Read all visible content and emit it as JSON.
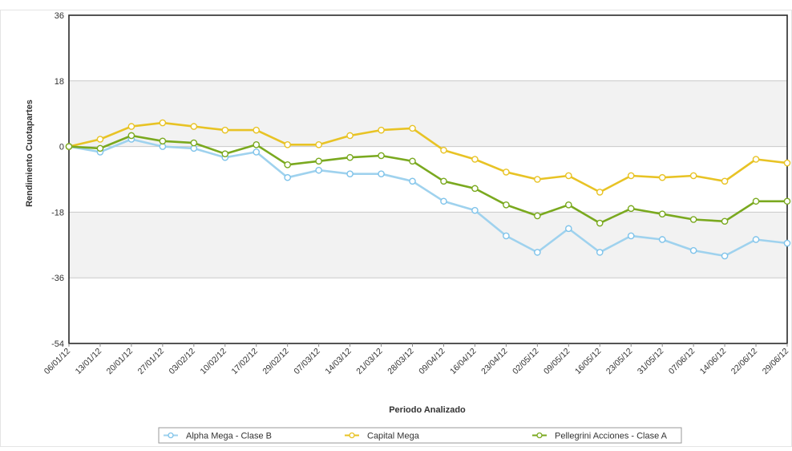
{
  "chart_data": {
    "type": "line",
    "title": "",
    "xlabel": "Periodo Analizado",
    "ylabel": "Rendimiento Cuotapartes",
    "ylim": [
      -54,
      36
    ],
    "yticks": [
      36,
      18,
      0,
      -18,
      -36,
      -54
    ],
    "grid": true,
    "legend_position": "bottom",
    "x": [
      "06/01/12",
      "13/01/12",
      "20/01/12",
      "27/01/12",
      "03/02/12",
      "10/02/12",
      "17/02/12",
      "29/02/12",
      "07/03/12",
      "14/03/12",
      "21/03/12",
      "28/03/12",
      "09/04/12",
      "16/04/12",
      "23/04/12",
      "02/05/12",
      "09/05/12",
      "16/05/12",
      "23/05/12",
      "31/05/12",
      "07/06/12",
      "14/06/12",
      "22/06/12",
      "29/06/12"
    ],
    "series": [
      {
        "name": "Alpha Mega - Clase B",
        "color": "#9fd2ee",
        "values": [
          0,
          -1.5,
          2,
          0,
          -0.5,
          -3,
          -1.5,
          -8.5,
          -6.5,
          -7.5,
          -7.5,
          -9.5,
          -15,
          -17.5,
          -24.5,
          -29,
          -22.5,
          -29,
          -24.5,
          -25.5,
          -28.5,
          -30,
          -25.5,
          -26.5
        ]
      },
      {
        "name": "Capital Mega",
        "color": "#e8c325",
        "values": [
          0,
          2,
          5.5,
          6.5,
          5.5,
          4.5,
          4.5,
          0.5,
          0.5,
          3,
          4.5,
          5,
          -1,
          -3.5,
          -7,
          -9,
          -8,
          -12.5,
          -8,
          -8.5,
          -8,
          -9.5,
          -3.5,
          -4.5
        ]
      },
      {
        "name": "Pellegrini Acciones - Clase A",
        "color": "#7aa91f",
        "values": [
          0,
          -0.5,
          3,
          1.5,
          1,
          -2,
          0.5,
          -5,
          -4,
          -3,
          -2.5,
          -4,
          -9.5,
          -11.5,
          -16,
          -19,
          -16,
          -21,
          -17,
          -18.5,
          -20,
          -20.5,
          -15,
          -15
        ]
      }
    ]
  }
}
